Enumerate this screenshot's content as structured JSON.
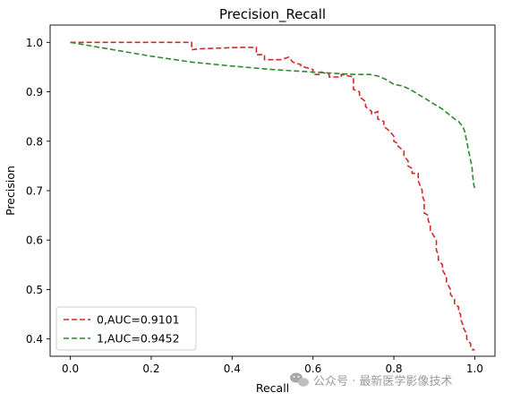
{
  "chart_data": {
    "type": "line",
    "title": "Precision_Recall",
    "xlabel": "Recall",
    "ylabel": "Precision",
    "xlim": [
      -0.05,
      1.05
    ],
    "ylim": [
      0.365,
      1.035
    ],
    "xticks": [
      0.0,
      0.2,
      0.4,
      0.6,
      0.8,
      1.0
    ],
    "xtick_labels": [
      "0.0",
      "0.2",
      "0.4",
      "0.6",
      "0.8",
      "1.0"
    ],
    "yticks": [
      0.4,
      0.5,
      0.6,
      0.7,
      0.8,
      0.9,
      1.0
    ],
    "ytick_labels": [
      "0.4",
      "0.5",
      "0.6",
      "0.7",
      "0.8",
      "0.9",
      "1.0"
    ],
    "grid": false,
    "legend_position": "lower-left",
    "series": [
      {
        "name": "0,AUC=0.9101",
        "color": "#d62728",
        "dash": "dashed",
        "x": [
          0.0,
          0.3,
          0.3,
          0.32,
          0.42,
          0.46,
          0.46,
          0.48,
          0.48,
          0.52,
          0.54,
          0.55,
          0.55,
          0.57,
          0.57,
          0.6,
          0.6,
          0.62,
          0.62,
          0.64,
          0.64,
          0.67,
          0.67,
          0.7,
          0.7,
          0.715,
          0.715,
          0.73,
          0.73,
          0.745,
          0.745,
          0.76,
          0.76,
          0.775,
          0.775,
          0.79,
          0.79,
          0.8,
          0.8,
          0.81,
          0.81,
          0.825,
          0.825,
          0.835,
          0.835,
          0.845,
          0.845,
          0.86,
          0.86,
          0.87,
          0.87,
          0.875,
          0.875,
          0.885,
          0.885,
          0.89,
          0.89,
          0.905,
          0.905,
          0.91,
          0.91,
          0.92,
          0.92,
          0.93,
          0.93,
          0.94,
          0.94,
          0.95,
          0.95,
          0.96,
          0.96,
          0.965,
          0.965,
          0.97,
          0.97,
          0.98,
          0.98,
          0.99,
          0.99,
          0.995,
          0.995,
          1.0
        ],
        "y": [
          1.0,
          1.0,
          0.985,
          0.987,
          0.99,
          0.99,
          0.975,
          0.975,
          0.965,
          0.965,
          0.97,
          0.96,
          0.96,
          0.955,
          0.952,
          0.945,
          0.935,
          0.935,
          0.94,
          0.935,
          0.93,
          0.93,
          0.935,
          0.93,
          0.905,
          0.9,
          0.89,
          0.88,
          0.87,
          0.86,
          0.855,
          0.86,
          0.845,
          0.84,
          0.83,
          0.82,
          0.82,
          0.81,
          0.8,
          0.795,
          0.79,
          0.78,
          0.77,
          0.76,
          0.75,
          0.745,
          0.735,
          0.735,
          0.72,
          0.7,
          0.69,
          0.68,
          0.655,
          0.65,
          0.64,
          0.63,
          0.62,
          0.6,
          0.58,
          0.57,
          0.56,
          0.55,
          0.54,
          0.525,
          0.515,
          0.5,
          0.49,
          0.48,
          0.47,
          0.465,
          0.455,
          0.45,
          0.44,
          0.43,
          0.425,
          0.41,
          0.4,
          0.39,
          0.385,
          0.38,
          0.378,
          0.378
        ]
      },
      {
        "name": "1,AUC=0.9452",
        "color": "#2c8a2c",
        "dash": "dashed",
        "x": [
          0.0,
          0.1,
          0.2,
          0.3,
          0.4,
          0.5,
          0.6,
          0.7,
          0.74,
          0.76,
          0.78,
          0.8,
          0.82,
          0.84,
          0.85,
          0.87,
          0.88,
          0.9,
          0.91,
          0.92,
          0.93,
          0.94,
          0.95,
          0.96,
          0.97,
          0.975,
          0.98,
          0.985,
          0.99,
          0.993,
          0.995,
          0.998,
          1.0
        ],
        "y": [
          1.0,
          0.986,
          0.972,
          0.96,
          0.952,
          0.945,
          0.94,
          0.935,
          0.935,
          0.932,
          0.925,
          0.915,
          0.912,
          0.905,
          0.9,
          0.89,
          0.885,
          0.875,
          0.87,
          0.865,
          0.858,
          0.852,
          0.845,
          0.84,
          0.83,
          0.82,
          0.8,
          0.78,
          0.76,
          0.75,
          0.73,
          0.71,
          0.705
        ]
      }
    ]
  },
  "watermark": {
    "text": "公众号 · 最新医学影像技术",
    "icon": "wechat-icon"
  }
}
